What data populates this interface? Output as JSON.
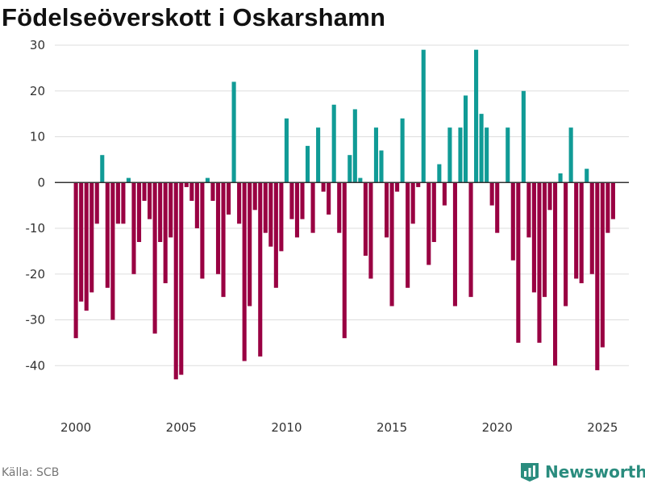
{
  "chart_data": {
    "type": "bar",
    "title": "Födelseöverskott i Oskarshamn",
    "xlabel": "",
    "ylabel": "",
    "ylim": [
      -50,
      30
    ],
    "yticks": [
      -40,
      -30,
      -20,
      -10,
      0,
      10,
      20,
      30
    ],
    "xlim": [
      1999.0,
      2026.25
    ],
    "xticks": [
      2000,
      2005,
      2010,
      2015,
      2020,
      2025
    ],
    "grid": true,
    "start": 2000.0,
    "step": 0.25,
    "period": "quarter",
    "values": [
      -34,
      -26,
      -28,
      -24,
      -9,
      6,
      -23,
      -30,
      -9,
      -9,
      1,
      -20,
      -13,
      -4,
      -8,
      -33,
      -13,
      -22,
      -12,
      -43,
      -42,
      -1,
      -4,
      -10,
      -21,
      1,
      -4,
      -20,
      -25,
      -7,
      22,
      -9,
      -39,
      -27,
      -6,
      -38,
      -11,
      -14,
      -23,
      -15,
      14,
      -8,
      -12,
      -8,
      8,
      -11,
      12,
      -2,
      -7,
      17,
      -11,
      -34,
      6,
      16,
      1,
      -16,
      -21,
      12,
      7,
      -12,
      -27,
      -2,
      14,
      -23,
      -9,
      -1,
      29,
      -18,
      -13,
      4,
      -5,
      12,
      -27,
      12,
      19,
      -25,
      29,
      15,
      12,
      -5,
      -11,
      0,
      12,
      -17,
      -35,
      20,
      -12,
      -24,
      -35,
      -25,
      -6,
      -40,
      2,
      -27,
      12,
      -21,
      -22,
      3,
      -20,
      -41,
      -36,
      -11,
      -8
    ],
    "colors": {
      "positive": "#109b96",
      "negative": "#990042"
    }
  },
  "source": "Källa: SCB",
  "brand": {
    "name": "Newsworthy",
    "icon": "newsworthy-logo-icon",
    "color": "#2a8c7e"
  }
}
